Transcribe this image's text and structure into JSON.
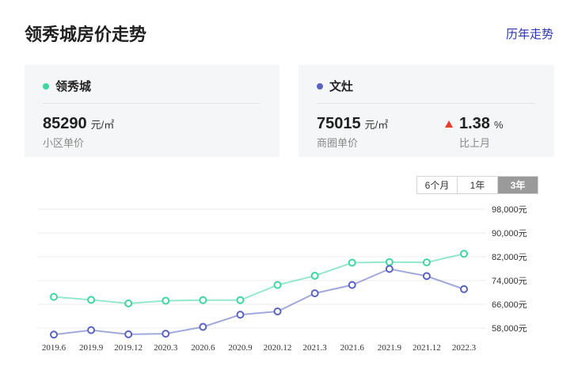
{
  "header": {
    "title": "领秀城房价走势",
    "history_link": "历年走势"
  },
  "colors": {
    "community": "#3fd6a0",
    "district": "#5a63bf",
    "up": "#ee3b2b",
    "link": "#2a35b0"
  },
  "community_card": {
    "name": "领秀城",
    "price": "85290",
    "unit": "元/㎡",
    "label": "小区单价"
  },
  "district_card": {
    "name": "文灶",
    "price": "75015",
    "unit": "元/㎡",
    "label": "商圈单价",
    "change": "1.38",
    "change_unit": "%",
    "change_label": "比上月"
  },
  "range_tabs": {
    "options": [
      "6个月",
      "1年",
      "3年"
    ],
    "selected": "3年"
  },
  "chart_data": {
    "type": "line",
    "x": [
      "2019.6",
      "2019.9",
      "2019.12",
      "2020.3",
      "2020.6",
      "2020.9",
      "2020.12",
      "2021.3",
      "2021.6",
      "2021.9",
      "2021.12",
      "2022.3"
    ],
    "x_tick_labels": [
      "2019.6",
      "2019.9",
      "2019.12",
      "2020.3",
      "2020.6",
      "2020.9",
      "2020.12",
      "2021.3",
      "2021.6",
      "2021.9",
      "2021.12",
      "2022.3"
    ],
    "y_tick_labels": [
      "98,000元",
      "90,000元",
      "82,000元",
      "74,000元",
      "66,000元",
      "58,000元"
    ],
    "y_ticks": [
      98000,
      90000,
      82000,
      74000,
      66000,
      58000
    ],
    "ylim": [
      58000,
      98000
    ],
    "series": [
      {
        "name": "领秀城",
        "color": "#3fd6a0",
        "values": [
          68500,
          67500,
          66300,
          67200,
          67400,
          67400,
          72500,
          75600,
          80000,
          80200,
          80100,
          83000
        ]
      },
      {
        "name": "文灶",
        "color": "#5a63bf",
        "values": [
          55800,
          57300,
          55900,
          56100,
          58400,
          62500,
          63600,
          69700,
          72500,
          77900,
          75500,
          71100
        ]
      }
    ],
    "grid": true,
    "title": "",
    "xlabel": "",
    "ylabel": ""
  }
}
